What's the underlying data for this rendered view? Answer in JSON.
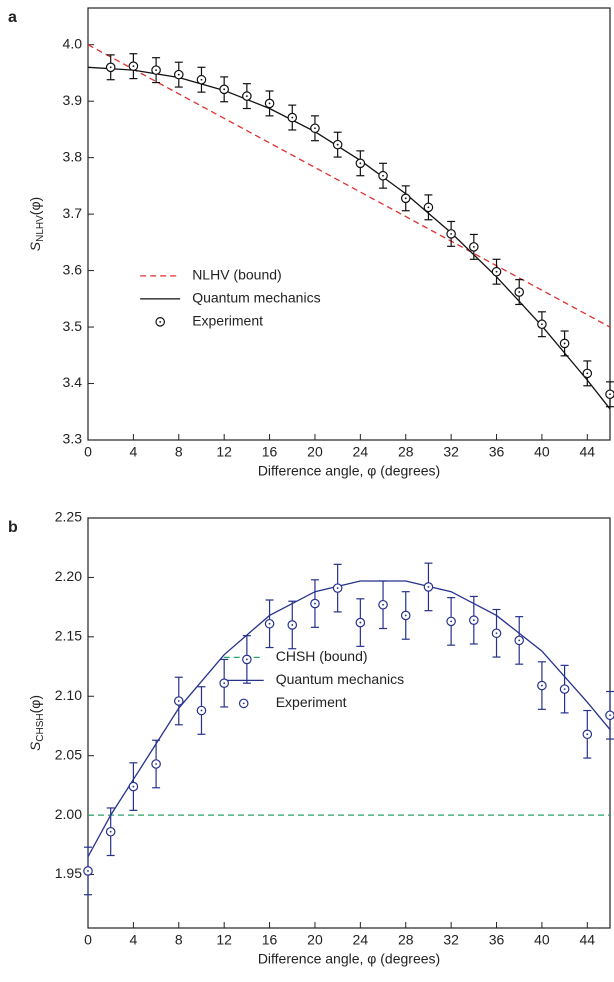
{
  "chart_data": [
    {
      "type": "line",
      "panel_label": "a",
      "xlabel": "Difference angle, φ (degrees)",
      "ylabel": {
        "symbol": "S",
        "subscript": "NLHV",
        "arg": "(φ)"
      },
      "xlim": [
        0,
        46
      ],
      "xticks": [
        0,
        4,
        8,
        12,
        16,
        20,
        24,
        28,
        32,
        36,
        40,
        44
      ],
      "ylim": [
        3.3,
        4.065
      ],
      "yticks": [
        3.3,
        3.4,
        3.5,
        3.6,
        3.7,
        3.8,
        3.9,
        {
          "value": 4,
          "label": "4.0"
        }
      ],
      "legend": "center-left",
      "series": [
        {
          "name": "NLHV (bound)",
          "color": "#e03030",
          "style": "dashed",
          "x": [
            0,
            46
          ],
          "values": [
            4.0,
            3.5
          ]
        },
        {
          "name": "Quantum mechanics",
          "color": "#111111",
          "style": "solid",
          "x": [
            0,
            4,
            8,
            12,
            16,
            20,
            24,
            28,
            32,
            36,
            40,
            44,
            46
          ],
          "values": [
            3.96,
            3.955,
            3.942,
            3.919,
            3.887,
            3.846,
            3.795,
            3.736,
            3.667,
            3.589,
            3.502,
            3.406,
            3.355
          ]
        },
        {
          "name": "Experiment",
          "color": "#111111",
          "style": "markers",
          "x": [
            2,
            4,
            6,
            8,
            10,
            12,
            14,
            16,
            18,
            20,
            22,
            24,
            26,
            28,
            30,
            32,
            34,
            36,
            38,
            40,
            42,
            44,
            46
          ],
          "values": [
            3.96,
            3.962,
            3.955,
            3.947,
            3.938,
            3.921,
            3.909,
            3.896,
            3.871,
            3.852,
            3.823,
            3.79,
            3.768,
            3.728,
            3.712,
            3.665,
            3.642,
            3.598,
            3.562,
            3.505,
            3.471,
            3.418,
            3.381
          ],
          "errors": [
            0.022,
            0.022,
            0.022,
            0.022,
            0.022,
            0.022,
            0.022,
            0.022,
            0.022,
            0.022,
            0.022,
            0.022,
            0.022,
            0.022,
            0.022,
            0.022,
            0.022,
            0.022,
            0.022,
            0.022,
            0.022,
            0.022,
            0.022
          ]
        }
      ]
    },
    {
      "type": "line",
      "panel_label": "b",
      "xlabel": "Difference angle, φ (degrees)",
      "ylabel": {
        "symbol": "S",
        "subscript": "CHSH",
        "arg": "(φ)"
      },
      "xlim": [
        0,
        46
      ],
      "xticks": [
        0,
        4,
        8,
        12,
        16,
        20,
        24,
        28,
        32,
        36,
        40,
        44
      ],
      "ylim": [
        1.905,
        2.25
      ],
      "yticks": [
        1.95,
        {
          "value": 2,
          "label": "2.00"
        },
        2.05,
        {
          "value": 2.1,
          "label": "2.10"
        },
        2.15,
        {
          "value": 2.2,
          "label": "2.20"
        },
        2.25
      ],
      "legend": "center",
      "series": [
        {
          "name": "CHSH (bound)",
          "color": "#2aa36b",
          "style": "dashed",
          "x": [
            0,
            46
          ],
          "values": [
            2.0,
            2.0
          ]
        },
        {
          "name": "Quantum mechanics",
          "color": "#26328c",
          "style": "solid",
          "x": [
            0,
            2,
            4,
            8,
            12,
            16,
            20,
            24,
            28,
            32,
            36,
            40,
            44,
            46
          ],
          "values": [
            1.965,
            2.0,
            2.03,
            2.09,
            2.135,
            2.168,
            2.188,
            2.197,
            2.197,
            2.188,
            2.168,
            2.138,
            2.095,
            2.072
          ]
        },
        {
          "name": "Experiment",
          "color": "#26328c",
          "style": "markers",
          "x": [
            0,
            2,
            4,
            6,
            8,
            10,
            12,
            14,
            16,
            18,
            20,
            22,
            24,
            26,
            28,
            30,
            32,
            34,
            36,
            38,
            40,
            42,
            44,
            46
          ],
          "values": [
            1.953,
            1.986,
            2.024,
            2.043,
            2.096,
            2.088,
            2.111,
            2.131,
            2.161,
            2.16,
            2.178,
            2.191,
            2.162,
            2.177,
            2.168,
            2.192,
            2.163,
            2.164,
            2.153,
            2.147,
            2.109,
            2.106,
            2.068,
            2.084
          ],
          "errors": [
            0.02,
            0.02,
            0.02,
            0.02,
            0.02,
            0.02,
            0.02,
            0.02,
            0.02,
            0.02,
            0.02,
            0.02,
            0.02,
            0.02,
            0.02,
            0.02,
            0.02,
            0.02,
            0.02,
            0.02,
            0.02,
            0.02,
            0.02,
            0.02
          ]
        }
      ]
    }
  ]
}
